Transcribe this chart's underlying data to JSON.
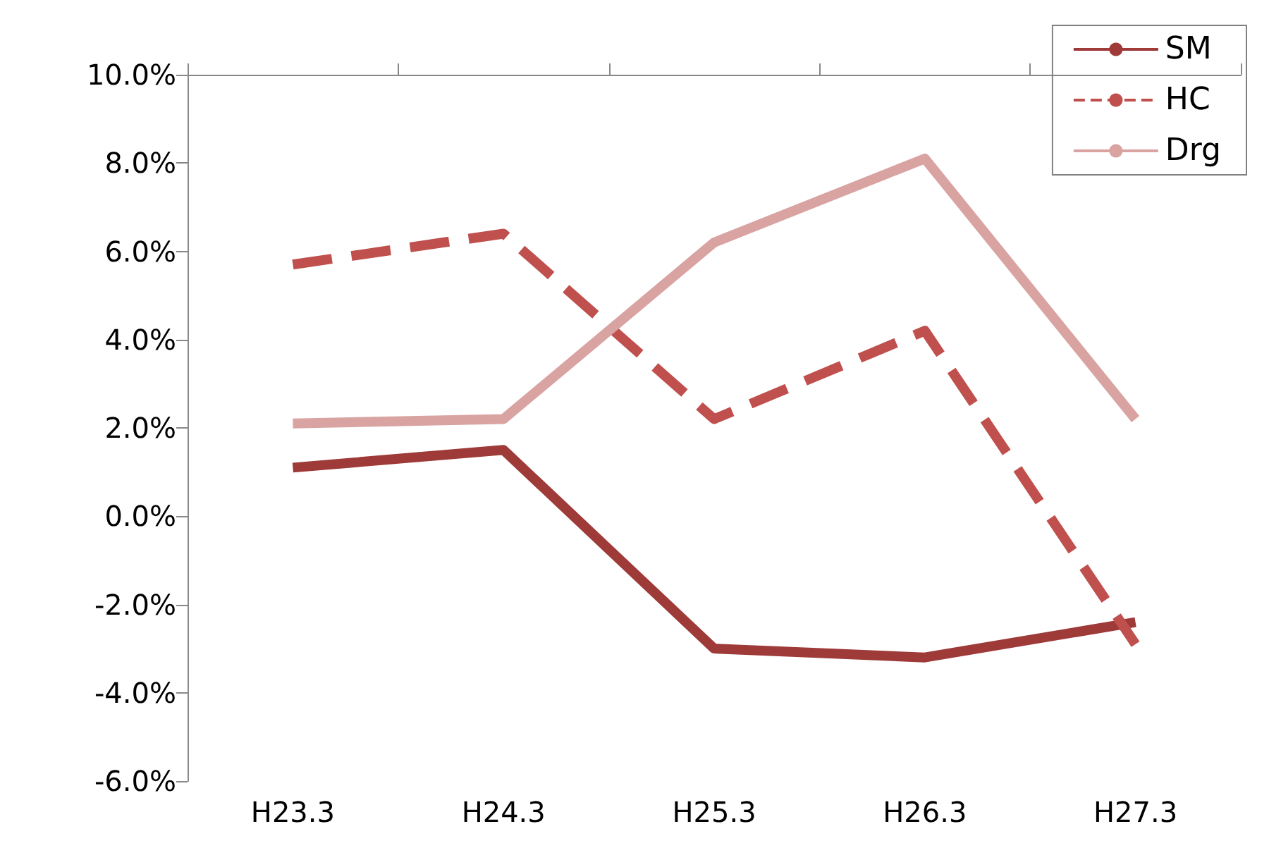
{
  "chart_data": {
    "type": "line",
    "categories": [
      "H23.3",
      "H24.3",
      "H25.3",
      "H26.3",
      "H27.3"
    ],
    "series": [
      {
        "name": "SM",
        "color": "#9e3a38",
        "line_style": "solid",
        "values": [
          1.1,
          1.5,
          -3.0,
          -3.2,
          -2.4
        ]
      },
      {
        "name": "HC",
        "color": "#c0504d",
        "line_style": "dashed",
        "values": [
          5.7,
          6.4,
          2.2,
          4.2,
          -2.9
        ]
      },
      {
        "name": "Drg",
        "color": "#d9a3a2",
        "line_style": "solid",
        "values": [
          2.1,
          2.2,
          6.2,
          8.1,
          2.2
        ]
      }
    ],
    "ylim": [
      -6,
      10
    ],
    "yticks": [
      {
        "value": -6,
        "label": "-6.0%"
      },
      {
        "value": -4,
        "label": "-4.0%"
      },
      {
        "value": -2,
        "label": "-2.0%"
      },
      {
        "value": 0,
        "label": "0.0%"
      },
      {
        "value": 2,
        "label": "2.0%"
      },
      {
        "value": 4,
        "label": "4.0%"
      },
      {
        "value": 6,
        "label": "6.0%"
      },
      {
        "value": 8,
        "label": "8.0%"
      },
      {
        "value": 10,
        "label": "10.0%"
      }
    ],
    "grid": false,
    "legend": "top right",
    "marker": "none"
  }
}
